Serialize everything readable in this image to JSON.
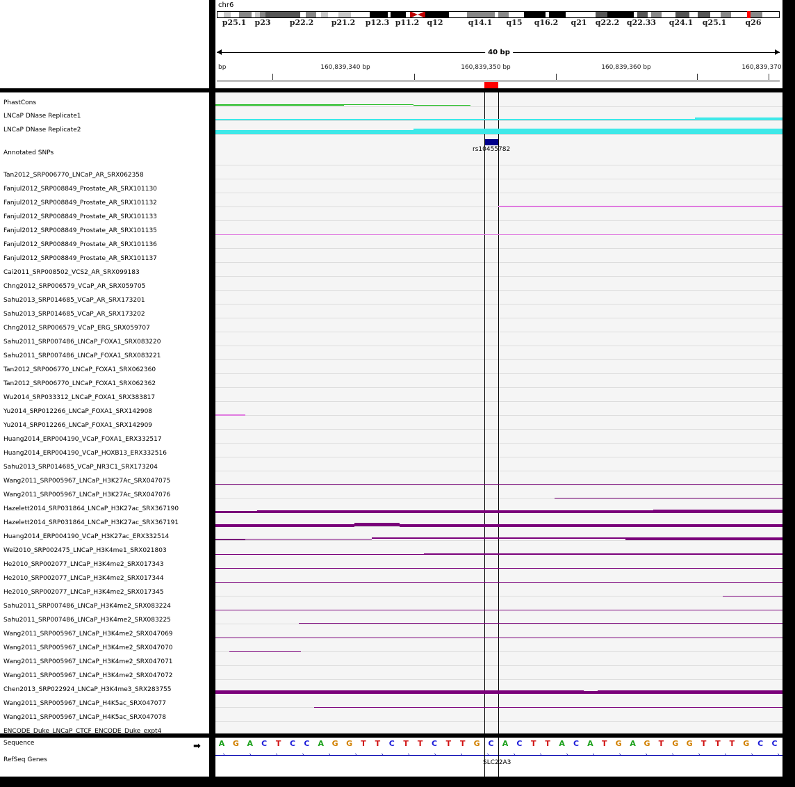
{
  "chromosome": "chr6",
  "bands": [
    "p25.1",
    "p23",
    "p22.2",
    "p21.2",
    "p12.3",
    "p11.2",
    "q12",
    "q14.1",
    "q15",
    "q16.2",
    "q21",
    "q22.2",
    "q22.33",
    "q24.1",
    "q25.1",
    "q26"
  ],
  "span_label": "40 bp",
  "ruler": {
    "start_label": "bp",
    "labels": [
      "160,839,340 bp",
      "160,839,350 bp",
      "160,839,360 bp",
      "160,839,370"
    ]
  },
  "tracks": [
    {
      "name": "PhastCons",
      "color": "#22bb22"
    },
    {
      "name": "LNCaP DNase Replicate1",
      "color": "#3ee8e8"
    },
    {
      "name": "LNCaP DNase Replicate2",
      "color": "#3ee8e8"
    },
    {
      "name": "Annotated SNPs",
      "color": "#00008b"
    },
    {
      "name": "Tan2012_SRP006770_LNCaP_AR_SRX062358"
    },
    {
      "name": "Fanjul2012_SRP008849_Prostate_AR_SRX101130"
    },
    {
      "name": "Fanjul2012_SRP008849_Prostate_AR_SRX101132",
      "color": "#e07be0"
    },
    {
      "name": "Fanjul2012_SRP008849_Prostate_AR_SRX101133"
    },
    {
      "name": "Fanjul2012_SRP008849_Prostate_AR_SRX101135",
      "color": "#e07be0"
    },
    {
      "name": "Fanjul2012_SRP008849_Prostate_AR_SRX101136"
    },
    {
      "name": "Fanjul2012_SRP008849_Prostate_AR_SRX101137"
    },
    {
      "name": "Cai2011_SRP008502_VCS2_AR_SRX099183"
    },
    {
      "name": "Chng2012_SRP006579_VCaP_AR_SRX059705"
    },
    {
      "name": "Sahu2013_SRP014685_VCaP_AR_SRX173201"
    },
    {
      "name": "Sahu2013_SRP014685_VCaP_AR_SRX173202"
    },
    {
      "name": "Chng2012_SRP006579_VCaP_ERG_SRX059707"
    },
    {
      "name": "Sahu2011_SRP007486_LNCaP_FOXA1_SRX083220"
    },
    {
      "name": "Sahu2011_SRP007486_LNCaP_FOXA1_SRX083221"
    },
    {
      "name": "Tan2012_SRP006770_LNCaP_FOXA1_SRX062360"
    },
    {
      "name": "Tan2012_SRP006770_LNCaP_FOXA1_SRX062362"
    },
    {
      "name": "Wu2014_SRP033312_LNCaP_FOXA1_SRX383817"
    },
    {
      "name": "Yu2014_SRP012266_LNCaP_FOXA1_SRX142908",
      "color": "#e07be0"
    },
    {
      "name": "Yu2014_SRP012266_LNCaP_FOXA1_SRX142909"
    },
    {
      "name": "Huang2014_ERP004190_VCaP_FOXA1_ERX332517"
    },
    {
      "name": "Huang2014_ERP004190_VCaP_HOXB13_ERX332516"
    },
    {
      "name": "Sahu2013_SRP014685_VCaP_NR3C1_SRX173204"
    },
    {
      "name": "Wang2011_SRP005967_LNCaP_H3K27Ac_SRX047075",
      "color": "#7a007a"
    },
    {
      "name": "Wang2011_SRP005967_LNCaP_H3K27Ac_SRX047076",
      "color": "#7a007a"
    },
    {
      "name": "Hazelett2014_SRP031864_LNCaP_H3K27ac_SRX367190",
      "color": "#7a007a"
    },
    {
      "name": "Hazelett2014_SRP031864_LNCaP_H3K27ac_SRX367191",
      "color": "#7a007a"
    },
    {
      "name": "Huang2014_ERP004190_VCaP_H3K27ac_ERX332514",
      "color": "#7a007a"
    },
    {
      "name": "Wei2010_SRP002475_LNCaP_H3K4me1_SRX021803",
      "color": "#7a007a"
    },
    {
      "name": "He2010_SRP002077_LNCaP_H3K4me2_SRX017343",
      "color": "#7a007a"
    },
    {
      "name": "He2010_SRP002077_LNCaP_H3K4me2_SRX017344",
      "color": "#7a007a"
    },
    {
      "name": "He2010_SRP002077_LNCaP_H3K4me2_SRX017345",
      "color": "#7a007a"
    },
    {
      "name": "Sahu2011_SRP007486_LNCaP_H3K4me2_SRX083224",
      "color": "#7a007a"
    },
    {
      "name": "Sahu2011_SRP007486_LNCaP_H3K4me2_SRX083225",
      "color": "#7a007a"
    },
    {
      "name": "Wang2011_SRP005967_LNCaP_H3K4me2_SRX047069",
      "color": "#7a007a"
    },
    {
      "name": "Wang2011_SRP005967_LNCaP_H3K4me2_SRX047070",
      "color": "#7a007a"
    },
    {
      "name": "Wang2011_SRP005967_LNCaP_H3K4me2_SRX047071",
      "color": "#7a007a"
    },
    {
      "name": "Wang2011_SRP005967_LNCaP_H3K4me2_SRX047072",
      "color": "#7a007a"
    },
    {
      "name": "Chen2013_SRP022924_LNCaP_H3K4me3_SRX283755",
      "color": "#7a007a"
    },
    {
      "name": "Wang2011_SRP005967_LNCaP_H4K5ac_SRX047077",
      "color": "#7a007a"
    },
    {
      "name": "Wang2011_SRP005967_LNCaP_H4K5ac_SRX047078",
      "color": "#7a007a"
    },
    {
      "name": "ENCODE_Duke_LNCaP_CTCF_ENCODE_Duke_expt4"
    }
  ],
  "snp_label": "rs10455782",
  "sequence_label": "Sequence",
  "sequence": "AGACTCCAGGTTCTTCTTGCACTTACATGAGTGGTTTGCC",
  "base_colors": {
    "A": "#1aa01a",
    "C": "#1a1ad8",
    "G": "#d18000",
    "T": "#d01010"
  },
  "refseq_label": "RefSeq Genes",
  "gene_name": "SLC22A3"
}
